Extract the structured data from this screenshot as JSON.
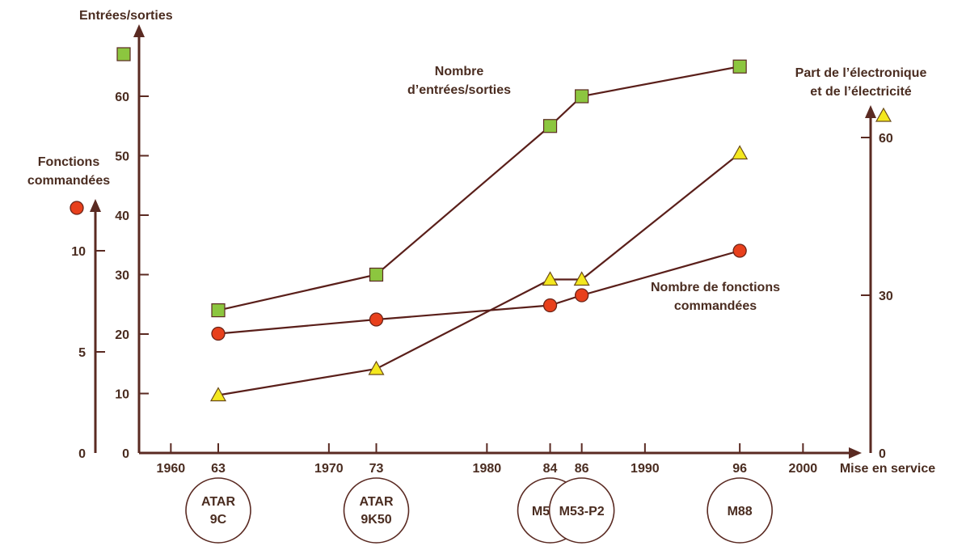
{
  "chart_data": {
    "type": "line",
    "xlabel": "Mise en service",
    "x_ticks": [
      1960,
      1970,
      1980,
      1990,
      2000
    ],
    "x_tick_labels": [
      "1960",
      "1970",
      "1980",
      "1990",
      "2000"
    ],
    "x_points": [
      63,
      73,
      84,
      86,
      96
    ],
    "x_point_labels": [
      "63",
      "73",
      "84",
      "86",
      "96"
    ],
    "engines": [
      {
        "line1": "ATAR",
        "line2": "9C",
        "x": 63
      },
      {
        "line1": "ATAR",
        "line2": "9K50",
        "x": 73
      },
      {
        "line1": "M53-5",
        "line2": "",
        "x": 84
      },
      {
        "line1": "M53-P2",
        "line2": "",
        "x": 86
      },
      {
        "line1": "M88",
        "line2": "",
        "x": 96
      }
    ],
    "axes": {
      "io": {
        "title": "Entrées/sorties",
        "min": 0,
        "max": 60,
        "ticks": [
          0,
          10,
          20,
          30,
          40,
          50,
          60
        ]
      },
      "fn": {
        "title_line1": "Fonctions",
        "title_line2": "commandées",
        "min": 0,
        "max": 10,
        "ticks": [
          0,
          5,
          10
        ]
      },
      "elec": {
        "title_line1": "Part de l’électronique",
        "title_line2": "et de l’électricité",
        "min": 0,
        "max": 60,
        "ticks": [
          0,
          30,
          60
        ]
      }
    },
    "series": [
      {
        "name_line1": "Nombre",
        "name_line2": "d’entrées/sorties",
        "axis": "io",
        "marker": "square",
        "color": "#8cc63f",
        "x": [
          63,
          73,
          84,
          86,
          96
        ],
        "values": [
          24,
          30,
          55,
          60,
          65
        ]
      },
      {
        "name_line1": "Nombre de fonctions",
        "name_line2": "commandées",
        "axis": "fn",
        "marker": "circle",
        "color": "#e8401c",
        "x": [
          63,
          73,
          84,
          86,
          96
        ],
        "values": [
          5.9,
          6.6,
          7.3,
          7.8,
          10
        ]
      },
      {
        "name_line1": "",
        "name_line2": "",
        "axis": "elec",
        "marker": "triangle",
        "color": "#f4e81e",
        "x": [
          63,
          73,
          84,
          86,
          96
        ],
        "values": [
          11,
          16,
          33,
          33,
          57
        ]
      }
    ],
    "legend_markers": [
      {
        "axis": "io",
        "marker": "square",
        "color": "#8cc63f"
      },
      {
        "axis": "fn",
        "marker": "circle",
        "color": "#e8401c"
      },
      {
        "axis": "elec",
        "marker": "triangle",
        "color": "#f4e81e"
      }
    ],
    "colors": {
      "axis": "#5a2a22",
      "line": "#5a1f1a",
      "text": "#4a2c20"
    }
  }
}
